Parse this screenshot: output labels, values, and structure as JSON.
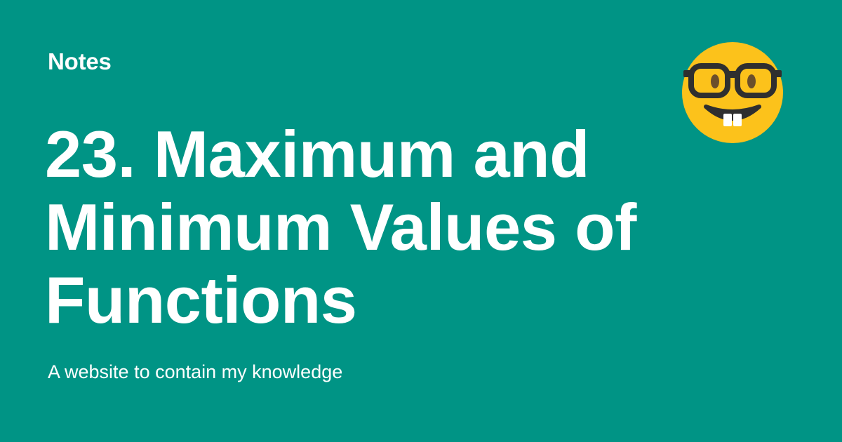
{
  "site": {
    "name": "Notes",
    "tagline": "A website to contain my knowledge"
  },
  "page": {
    "title": "23. Maximum and Minimum Values of Functions"
  },
  "logo": {
    "icon": "nerd-face-emoji-icon"
  },
  "colors": {
    "background": "#009485",
    "text": "#ffffff",
    "emoji_face": "#fcc21b",
    "emoji_dark": "#2f2f2f",
    "emoji_eye": "#6b4f2b"
  }
}
